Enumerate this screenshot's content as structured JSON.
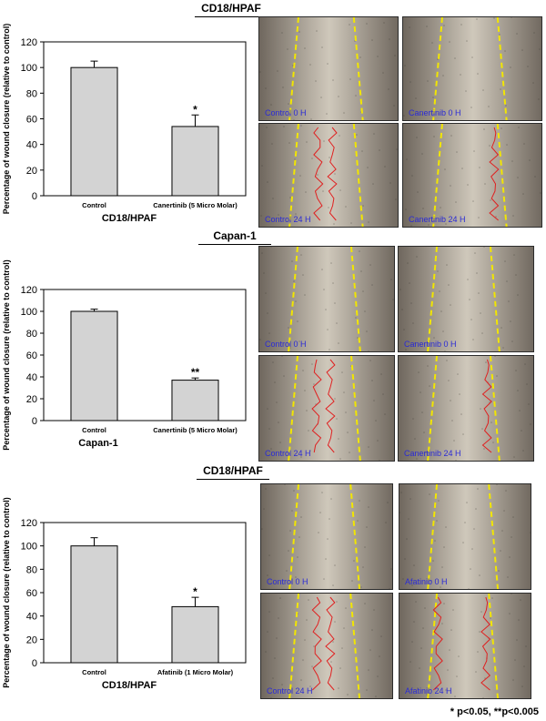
{
  "sections": [
    {
      "header": "CD18/HPAF",
      "chart_data": {
        "type": "bar",
        "categories": [
          "Control",
          "Canertinib (5 Micro Molar)"
        ],
        "values": [
          100,
          54
        ],
        "errors": [
          5,
          9
        ],
        "significance": [
          "",
          "*"
        ],
        "ylabel": "Percentage of wound closure (relative to control)",
        "xlabel": "CD18/HPAF",
        "ylim": [
          0,
          120
        ],
        "yticks": [
          0,
          20,
          40,
          60,
          80,
          100,
          120
        ],
        "bar_color": "#d3d3d3"
      },
      "images": [
        {
          "label": "Control 0 H"
        },
        {
          "label": "Canertinib 0 H"
        },
        {
          "label": "Control 24 H"
        },
        {
          "label": "Canertinib 24 H"
        }
      ]
    },
    {
      "header": "Capan-1",
      "chart_data": {
        "type": "bar",
        "categories": [
          "Control",
          "Canertinib (5 Micro Molar)"
        ],
        "values": [
          100,
          37
        ],
        "errors": [
          2,
          2
        ],
        "significance": [
          "",
          "**"
        ],
        "ylabel": "Percentage of wound closure (relative to control)",
        "xlabel": "Capan-1",
        "ylim": [
          0,
          120
        ],
        "yticks": [
          0,
          20,
          40,
          60,
          80,
          100,
          120
        ],
        "bar_color": "#d3d3d3"
      },
      "images": [
        {
          "label": "Control 0 H"
        },
        {
          "label": "Canertinib 0 H"
        },
        {
          "label": "Control 24 H"
        },
        {
          "label": "Canertinib 24 H"
        }
      ]
    },
    {
      "header": "CD18/HPAF",
      "chart_data": {
        "type": "bar",
        "categories": [
          "Control",
          "Afatinib (1 Micro Molar)"
        ],
        "values": [
          100,
          48
        ],
        "errors": [
          7,
          8
        ],
        "significance": [
          "",
          "*"
        ],
        "ylabel": "Percentage of wound closure (relative to control)",
        "xlabel": "CD18/HPAF",
        "ylim": [
          0,
          120
        ],
        "yticks": [
          0,
          20,
          40,
          60,
          80,
          100,
          120
        ],
        "bar_color": "#d3d3d3"
      },
      "images": [
        {
          "label": "Control 0 H"
        },
        {
          "label": "Afatinib 0 H"
        },
        {
          "label": "Control 24 H"
        },
        {
          "label": "Afatinib 24 H"
        }
      ]
    }
  ],
  "footnote": "* p<0.05, **p<0.005",
  "colors": {
    "wound_edge_line": "#f2e600",
    "migration_front": "#e02020",
    "image_label": "#2a2ad6",
    "tissue_dark": "#6f675e",
    "tissue_light": "#cfc8bb"
  }
}
